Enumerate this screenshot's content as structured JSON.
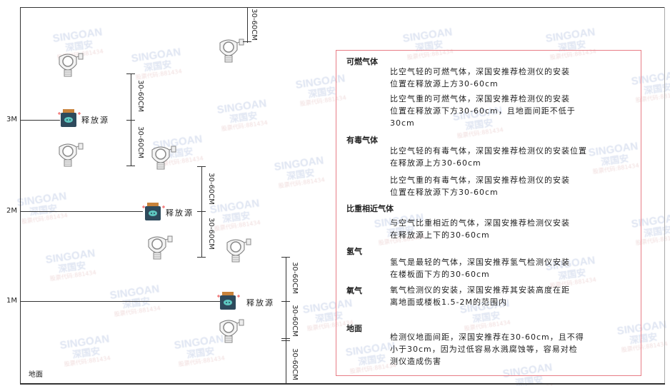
{
  "watermark": {
    "brand": "SINGOAN",
    "cn": "深国安",
    "sub": "股票代码:881434"
  },
  "heights": [
    "3M",
    "2M",
    "1M"
  ],
  "ground_label": "地面",
  "source_label": "释放源",
  "dimension_label": "30-60CM",
  "panel": {
    "sections": [
      {
        "heading": "可燃气体",
        "paragraphs": [
          [
            "比空气轻的可燃气体，深国安推荐检测仪的安装",
            "位置在释放源上方30-60cm"
          ],
          [
            "比空气重的可燃气体，深国安推荐检测仪的安装",
            "位置在释放源下方30-60cm，且地面间距不低于",
            "30cm"
          ]
        ]
      },
      {
        "heading": "有毒气体",
        "paragraphs": [
          [
            "比空气轻的有毒气体，深国安推荐检测仪的安装位置",
            "在释放源上方30-60cm"
          ],
          [
            "比空气重的有毒气体，深国安推荐检测仪的安装",
            "位置在释放源下方30-60cm"
          ]
        ]
      },
      {
        "heading": "比重相近气体",
        "paragraphs": [
          [
            "与空气比重相近的气体，深国安推荐检测仪安装",
            "在释放源上下的30-60cm"
          ]
        ]
      },
      {
        "heading": "氢气",
        "paragraphs": [
          [
            "氢气是最轻的气体，深国安推荐氢气检测仪安装",
            "在楼板面下方的30-60cm"
          ]
        ]
      },
      {
        "heading": "氧气",
        "paragraphs": [
          [
            "氧气检测仪的安装，深国安推荐其安装高度在距",
            "离地面或楼板1.5-2M的范围内"
          ]
        ]
      },
      {
        "heading": "地面",
        "paragraphs": [
          [
            "检测仪地面间距，深国安推荐在30-60cm，且不得",
            "小于30cm，因为过低容易水溅腐蚀等，容易对检",
            "测仪造成伤害"
          ]
        ]
      }
    ]
  },
  "colors": {
    "panel_border": "#e87d86",
    "source_body": "#2e4a5c",
    "source_cap": "#c8823a",
    "source_face": "#5ec7c0"
  }
}
